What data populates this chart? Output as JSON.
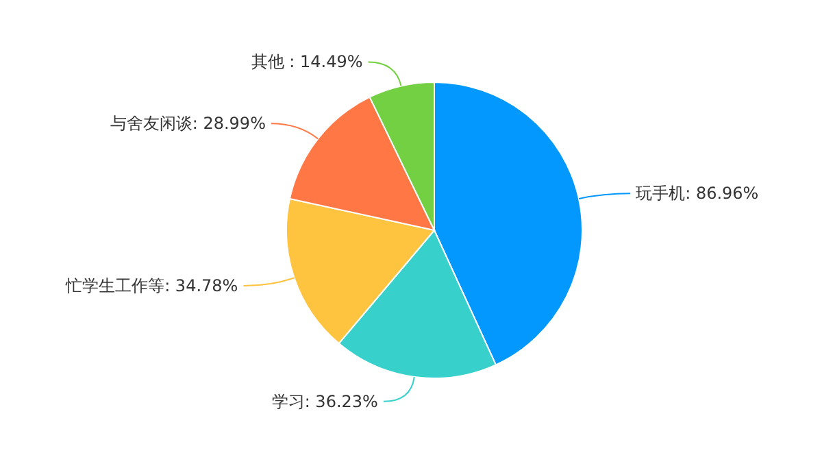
{
  "chart_data": {
    "type": "pie",
    "categories": [
      "玩手机",
      "学习",
      "忙学生工作等",
      "与舍友闲谈",
      "其他"
    ],
    "values": [
      86.96,
      36.23,
      34.78,
      28.99,
      14.49
    ],
    "colors": [
      "#0398fd",
      "#37d0cb",
      "#fec33f",
      "#ff7744",
      "#74d043"
    ],
    "value_labels": [
      ": 86.96%",
      ": 36.23%",
      ": 34.78%",
      ": 28.99%",
      " : 14.49%"
    ]
  }
}
